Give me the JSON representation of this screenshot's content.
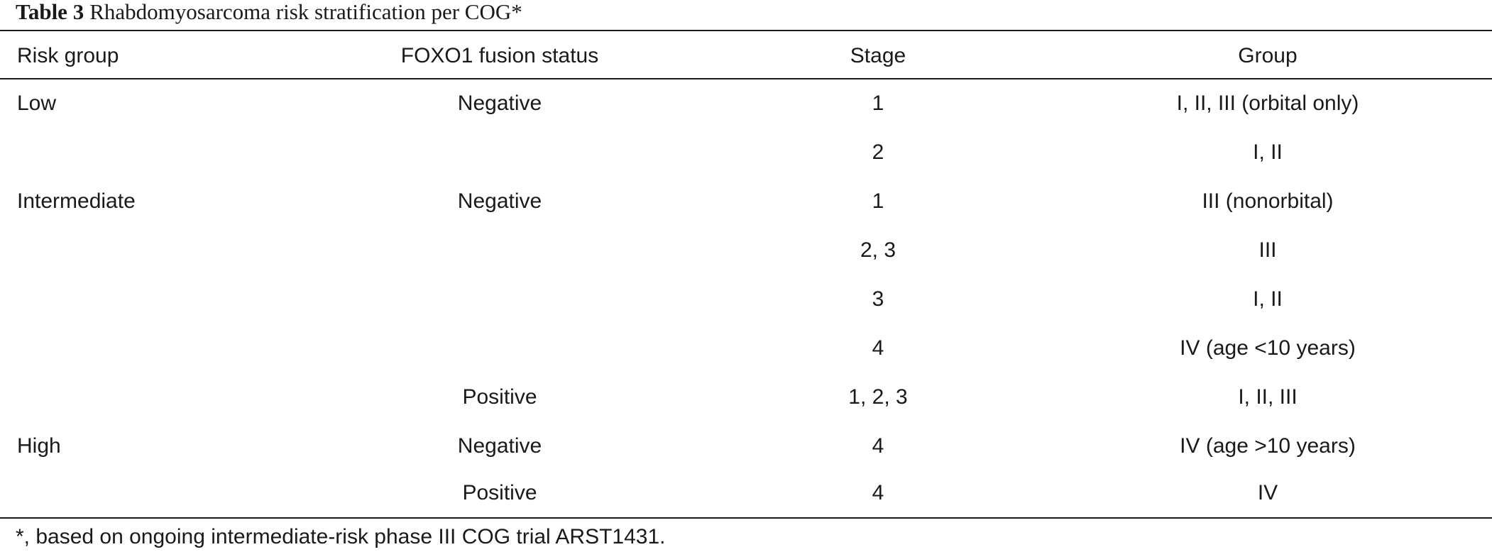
{
  "caption": {
    "label": "Table 3",
    "title": "Rhabdomyosarcoma risk stratification per COG*"
  },
  "table": {
    "headers": {
      "risk": "Risk group",
      "foxo": "FOXO1 fusion status",
      "stage": "Stage",
      "group": "Group"
    },
    "rows": [
      {
        "risk": "Low",
        "foxo": "Negative",
        "stage": "1",
        "group": "I, II, III (orbital only)"
      },
      {
        "risk": "",
        "foxo": "",
        "stage": "2",
        "group": "I, II"
      },
      {
        "risk": "Intermediate",
        "foxo": "Negative",
        "stage": "1",
        "group": "III (nonorbital)"
      },
      {
        "risk": "",
        "foxo": "",
        "stage": "2, 3",
        "group": "III"
      },
      {
        "risk": "",
        "foxo": "",
        "stage": "3",
        "group": "I, II"
      },
      {
        "risk": "",
        "foxo": "",
        "stage": "4",
        "group": "IV (age <10 years)"
      },
      {
        "risk": "",
        "foxo": "Positive",
        "stage": "1, 2, 3",
        "group": "I, II, III"
      },
      {
        "risk": "High",
        "foxo": "Negative",
        "stage": "4",
        "group": "IV (age >10 years)"
      },
      {
        "risk": "",
        "foxo": "Positive",
        "stage": "4",
        "group": "IV"
      }
    ]
  },
  "footnote": "*, based on ongoing intermediate-risk phase III COG trial ARST1431."
}
